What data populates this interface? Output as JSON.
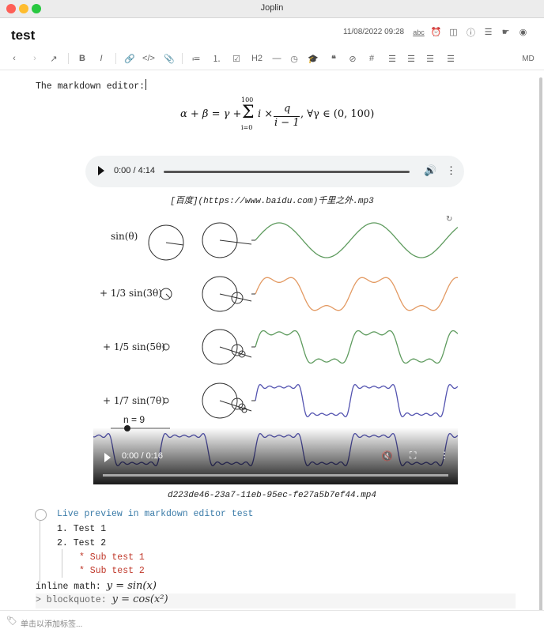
{
  "window": {
    "title": "Joplin"
  },
  "note": {
    "title": "test",
    "date": "11/08/2022 09:28"
  },
  "header_icons": [
    "spellcheck-icon",
    "alarm-icon",
    "layout-icon",
    "info-icon",
    "toc-icon",
    "hand-icon",
    "sync-icon"
  ],
  "header_spell_label": "abc",
  "toolbar": {
    "heading_label": "H2",
    "mode_label": "MD"
  },
  "editor": {
    "line1": "The markdown editor:",
    "block_math": "α + β = γ + Σ_{i=0}^{100} i × q/(i−1),  ∀γ ∈ (0,100)",
    "block_math_parts": {
      "lhs": "α + β = γ +",
      "sum": "Σ",
      "sup": "100",
      "sub": "i=0",
      "mid": "i ×",
      "num": "q",
      "den": "i − 1",
      "rhs": ",   ∀γ ∈ (0, 100)"
    },
    "audio": {
      "time": "0:00 / 4:14"
    },
    "audio_caption": "[百度](https://www.baidu.com)千里之外.mp3",
    "video": {
      "time": "0:00 / 0:16"
    },
    "video_caption": "d223de46-23a7-11eb-95ec-fe27a5b7ef44.mp4",
    "task": "Live preview in markdown editor test",
    "ordered": [
      "1. Test 1",
      "2. Test 2"
    ],
    "unordered": [
      "* Sub test 1",
      "* Sub test 2"
    ],
    "inline_label": "inline math: ",
    "inline_math": "y = sin(x)",
    "blockquote_label": "> blockquote: ",
    "blockquote_math": "y = cos(x²)"
  },
  "video_frame": {
    "labels": [
      "sin(θ)",
      "+ 1/3 sin(3θ)",
      "+ 1/5 sin(5θ)",
      "+ 1/7 sin(7θ)"
    ],
    "slider_label": "n = 9",
    "colors": {
      "wave1": "#5e9b5e",
      "wave2": "#e39a63",
      "wave3": "#5e9b5e",
      "wave4": "#5353b0"
    }
  },
  "footer": {
    "tag_placeholder": "单击以添加标签..."
  }
}
